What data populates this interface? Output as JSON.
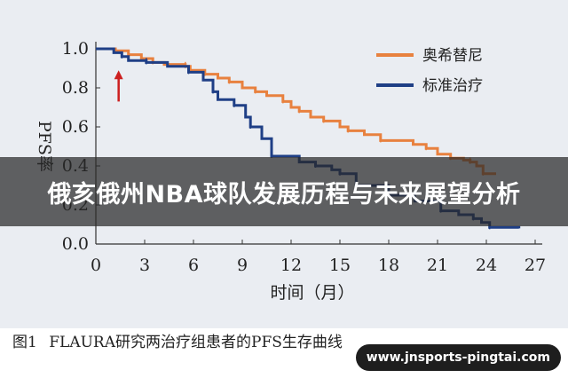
{
  "chart_data": {
    "type": "line",
    "ylabel": "PFS率",
    "xlabel": "时间（月）",
    "xlim": [
      0,
      27
    ],
    "ylim": [
      0,
      1.0
    ],
    "x_ticks": [
      0,
      3,
      6,
      9,
      12,
      15,
      18,
      21,
      24,
      27
    ],
    "y_ticks": [
      0.0,
      0.2,
      0.4,
      0.6,
      0.8,
      1.0
    ],
    "x_tick_labels": [
      "0",
      "3",
      "6",
      "9",
      "12",
      "15",
      "18",
      "21",
      "24",
      "27"
    ],
    "y_tick_labels": [
      "0.0",
      "0.2",
      "0.4",
      "0.6",
      "0.8",
      "1.0"
    ],
    "grid": false,
    "legend_position": "top-right",
    "annotation": {
      "type": "arrow",
      "x": 1.4,
      "y_from": 0.73,
      "y_to": 0.89,
      "color": "#cc1f1f"
    },
    "series": [
      {
        "name": "奥希替尼",
        "color": "#e8813f",
        "x": [
          0,
          1.2,
          2.0,
          2.8,
          3.5,
          4.2,
          5.5,
          5.8,
          6.7,
          7.5,
          8.2,
          9.0,
          9.8,
          10.5,
          11.5,
          12.0,
          12.5,
          13.2,
          14.0,
          15.0,
          15.5,
          16.5,
          17.5,
          19.5,
          20.3,
          21.0,
          21.8,
          22.6,
          23.0,
          23.4,
          23.8,
          24.6
        ],
        "y": [
          1.0,
          0.99,
          0.97,
          0.95,
          0.93,
          0.92,
          0.91,
          0.89,
          0.87,
          0.85,
          0.83,
          0.8,
          0.78,
          0.76,
          0.73,
          0.7,
          0.68,
          0.65,
          0.63,
          0.6,
          0.58,
          0.56,
          0.53,
          0.51,
          0.49,
          0.46,
          0.44,
          0.43,
          0.42,
          0.4,
          0.36,
          0.36
        ]
      },
      {
        "name": "标准治疗",
        "color": "#1f3f86",
        "x": [
          0,
          1.1,
          1.6,
          2.0,
          3.1,
          4.4,
          5.7,
          6.6,
          7.2,
          7.5,
          8.5,
          9.2,
          9.5,
          10.2,
          10.8,
          12.5,
          13.5,
          14.5,
          15.0,
          16.0,
          18.0,
          19.6,
          21.2,
          22.3,
          23.2,
          23.7,
          24.2,
          26.0
        ],
        "y": [
          1.0,
          0.98,
          0.96,
          0.94,
          0.93,
          0.91,
          0.88,
          0.84,
          0.78,
          0.74,
          0.71,
          0.65,
          0.6,
          0.54,
          0.45,
          0.42,
          0.4,
          0.38,
          0.36,
          0.3,
          0.25,
          0.22,
          0.17,
          0.15,
          0.13,
          0.11,
          0.085,
          0.08
        ]
      }
    ]
  },
  "caption": {
    "figure_label": "图1",
    "text": "FLAURA研究两治疗组患者的PFS生存曲线"
  },
  "banner": {
    "title": "俄亥俄州NBA球队发展历程与未来展望分析"
  },
  "watermark": {
    "text": "www.jnsports-pingtai.com"
  }
}
